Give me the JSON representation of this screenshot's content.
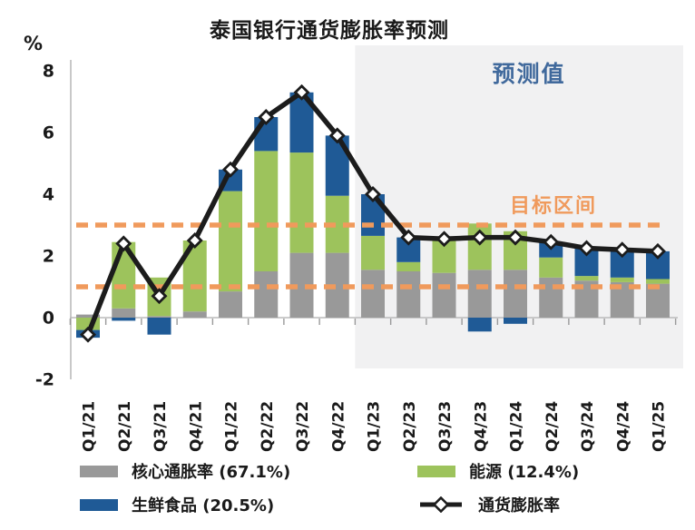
{
  "title": "泰国银行通货膨胀率预测",
  "y_axis": {
    "unit_label": "%",
    "ticks": [
      8,
      6,
      4,
      2,
      0,
      -2
    ],
    "min": -2,
    "max": 8
  },
  "forecast": {
    "label": "预测值",
    "start_category": "Q1/23"
  },
  "target_band": {
    "label": "目标区间",
    "upper": 3,
    "lower": 1
  },
  "colors": {
    "core": "#999999",
    "energy": "#9DC35C",
    "fresh": "#1F5A96",
    "line": "#1c1c1c",
    "target": "#F09A5C",
    "forecast_bg": "#F1F1F2",
    "forecast_text": "#40699C",
    "axis": "#BBBBBB"
  },
  "legend": {
    "core": "核心通胀率 (67.1%)",
    "energy": "能源 (12.4%)",
    "fresh": "生鲜食品 (20.5%)",
    "line": "通货膨胀率"
  },
  "chart_data": {
    "type": "bar+line",
    "title": "泰国银行通货膨胀率预测",
    "ylabel": "%",
    "ylim": [
      -2,
      8
    ],
    "grid": false,
    "legend_position": "bottom",
    "categories": [
      "Q1/21",
      "Q2/21",
      "Q3/21",
      "Q4/21",
      "Q1/22",
      "Q2/22",
      "Q3/22",
      "Q4/22",
      "Q1/23",
      "Q2/23",
      "Q3/23",
      "Q4/23",
      "Q1/24",
      "Q2/24",
      "Q3/24",
      "Q4/24",
      "Q1/25"
    ],
    "series": [
      {
        "name": "核心通胀率 (67.1%)",
        "type": "bar",
        "color_key": "core",
        "values": [
          0.1,
          0.3,
          0.05,
          0.2,
          0.85,
          1.5,
          2.1,
          2.1,
          1.55,
          1.5,
          1.45,
          1.55,
          1.55,
          1.3,
          1.2,
          1.15,
          1.1
        ]
      },
      {
        "name": "能源 (12.4%)",
        "type": "bar",
        "color_key": "energy",
        "values": [
          -0.4,
          2.15,
          1.25,
          2.3,
          3.25,
          3.9,
          3.25,
          1.85,
          1.1,
          0.3,
          1.1,
          1.5,
          1.25,
          0.65,
          0.15,
          0.15,
          0.15
        ]
      },
      {
        "name": "生鲜食品 (20.5%)",
        "type": "bar",
        "color_key": "fresh",
        "values": [
          -0.25,
          -0.1,
          -0.55,
          0.0,
          0.7,
          1.1,
          1.95,
          1.95,
          1.35,
          0.8,
          0.0,
          -0.45,
          -0.2,
          0.5,
          0.9,
          0.9,
          0.9
        ]
      },
      {
        "name": "通货膨胀率",
        "type": "line",
        "color_key": "line",
        "values": [
          -0.55,
          2.4,
          0.7,
          2.5,
          4.8,
          6.5,
          7.3,
          5.9,
          4.0,
          2.6,
          2.55,
          2.6,
          2.6,
          2.45,
          2.25,
          2.2,
          2.15
        ]
      }
    ],
    "annotations": [
      "预测值",
      "目标区间"
    ]
  }
}
